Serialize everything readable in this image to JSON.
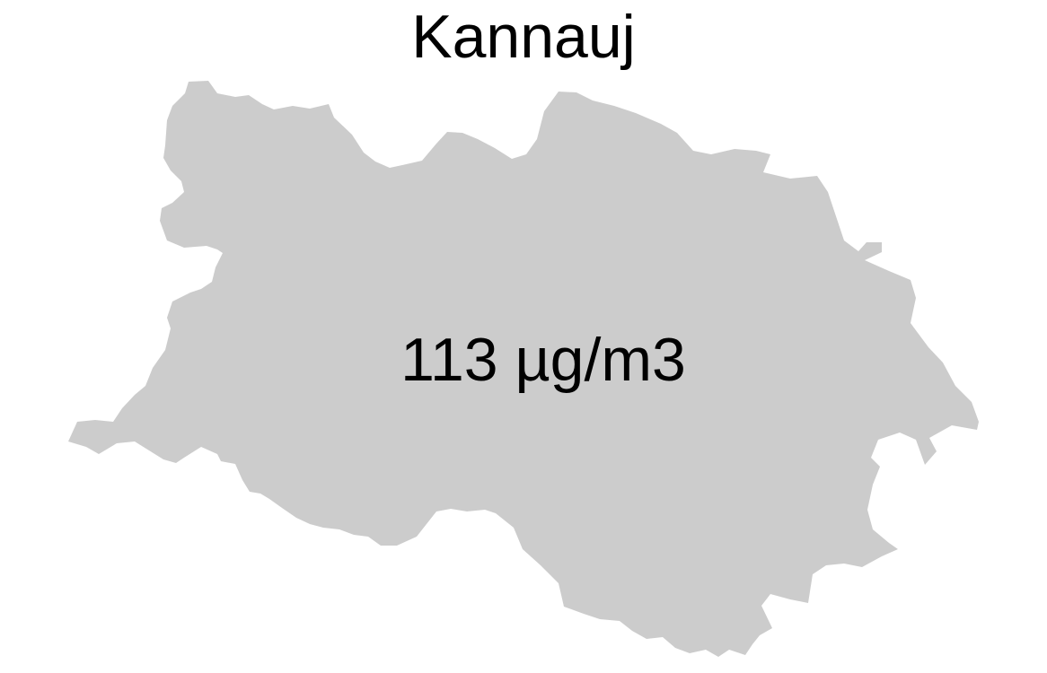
{
  "map": {
    "title": "Kannauj",
    "region_name": "Kannauj",
    "value_label": "113 µg/m3",
    "value": 113,
    "unit": "µg/m3",
    "fill_color": "#cccccc",
    "background_color": "#ffffff",
    "text_color": "#000000"
  }
}
